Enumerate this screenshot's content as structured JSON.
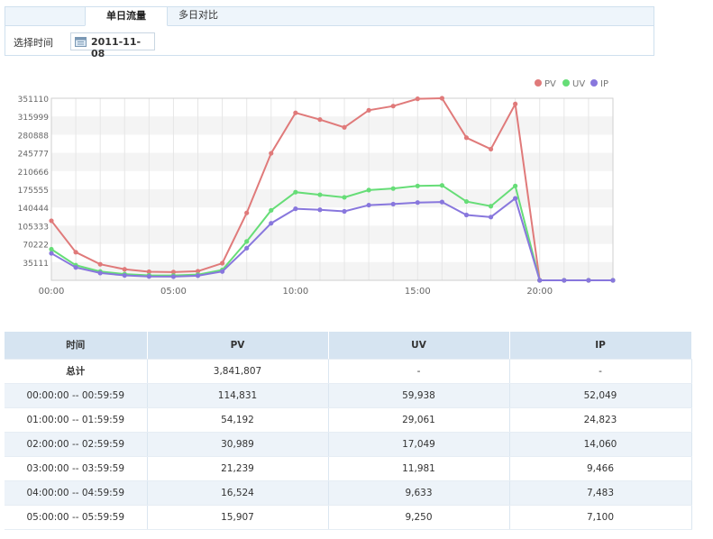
{
  "tabs": [
    {
      "label": "单日流量",
      "active": true
    },
    {
      "label": "多日对比",
      "active": false
    }
  ],
  "date_selector": {
    "label": "选择时间",
    "value": "2011-11-08",
    "icon": "calendar-icon"
  },
  "chart_data": {
    "type": "line",
    "x": [
      0,
      1,
      2,
      3,
      4,
      5,
      6,
      7,
      8,
      9,
      10,
      11,
      12,
      13,
      14,
      15,
      16,
      17,
      18,
      19,
      20,
      21,
      22,
      23
    ],
    "x_tick_labels": [
      "00:00",
      "05:00",
      "10:00",
      "15:00",
      "20:00"
    ],
    "x_tick_positions": [
      0,
      5,
      10,
      15,
      20
    ],
    "y_tick_labels": [
      "35111",
      "70222",
      "105333",
      "140444",
      "175555",
      "210666",
      "245777",
      "280888",
      "315999",
      "351110"
    ],
    "ylim": [
      0,
      351110
    ],
    "legend_position": "top-right",
    "series": [
      {
        "name": "PV",
        "color": "#e07a7a",
        "values": [
          114831,
          54192,
          30989,
          21239,
          16524,
          15907,
          17500,
          33000,
          130000,
          245000,
          323000,
          310000,
          295000,
          328000,
          336000,
          350000,
          351110,
          275000,
          253000,
          340000,
          0,
          0,
          0,
          0
        ]
      },
      {
        "name": "UV",
        "color": "#66dd77",
        "values": [
          59938,
          29061,
          17049,
          11981,
          9633,
          9250,
          11000,
          20000,
          75000,
          135000,
          170000,
          165000,
          160000,
          174000,
          177000,
          182000,
          183000,
          152000,
          143000,
          182000,
          0,
          0,
          0,
          0
        ]
      },
      {
        "name": "IP",
        "color": "#8877dd",
        "values": [
          52049,
          24823,
          14060,
          9466,
          7483,
          7100,
          9000,
          17000,
          62000,
          110000,
          138000,
          136000,
          133000,
          145000,
          147000,
          150000,
          151000,
          126000,
          122000,
          158000,
          0,
          0,
          0,
          0
        ]
      }
    ]
  },
  "table": {
    "headers": [
      "时间",
      "PV",
      "UV",
      "IP"
    ],
    "total": {
      "label": "总计",
      "pv": "3,841,807",
      "uv": "-",
      "ip": "-"
    },
    "rows": [
      {
        "time": "00:00:00 -- 00:59:59",
        "pv": "114,831",
        "uv": "59,938",
        "ip": "52,049"
      },
      {
        "time": "01:00:00 -- 01:59:59",
        "pv": "54,192",
        "uv": "29,061",
        "ip": "24,823"
      },
      {
        "time": "02:00:00 -- 02:59:59",
        "pv": "30,989",
        "uv": "17,049",
        "ip": "14,060"
      },
      {
        "time": "03:00:00 -- 03:59:59",
        "pv": "21,239",
        "uv": "11,981",
        "ip": "9,466"
      },
      {
        "time": "04:00:00 -- 04:59:59",
        "pv": "16,524",
        "uv": "9,633",
        "ip": "7,483"
      },
      {
        "time": "05:00:00 -- 05:59:59",
        "pv": "15,907",
        "uv": "9,250",
        "ip": "7,100"
      }
    ]
  }
}
